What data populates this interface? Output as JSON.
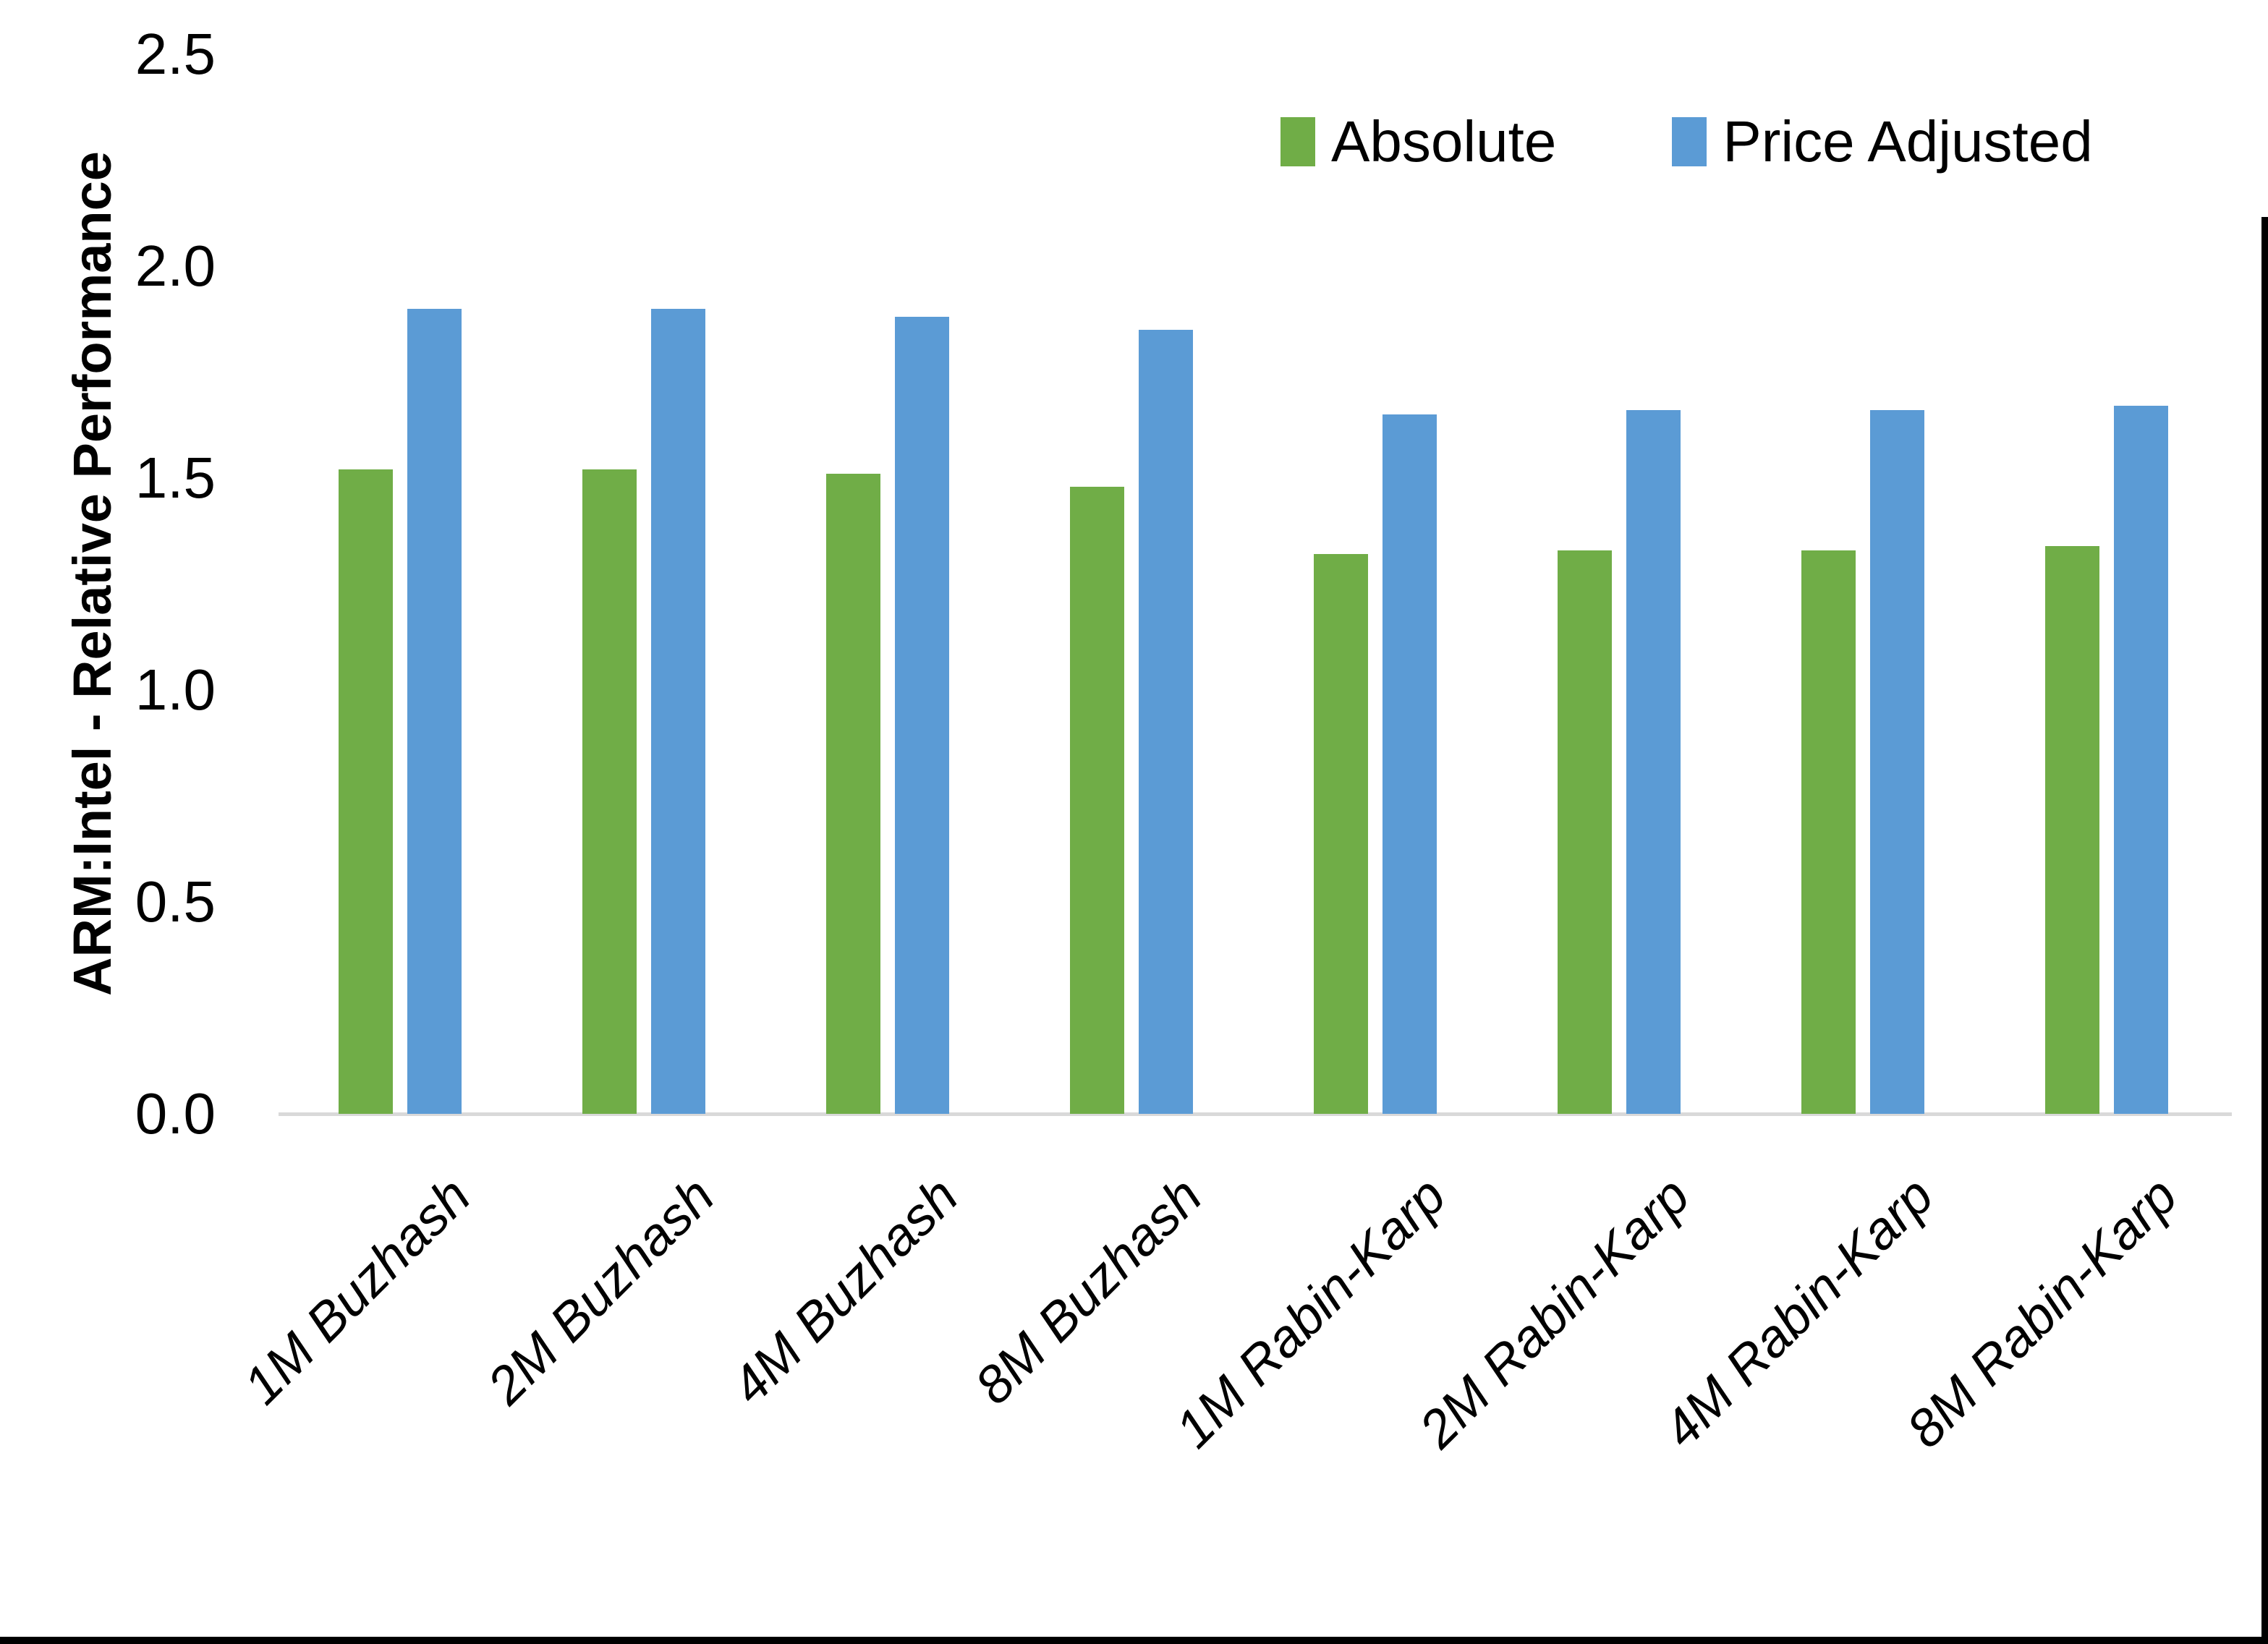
{
  "chart_data": {
    "type": "bar",
    "title": "",
    "xlabel": "",
    "ylabel": "ARM:Intel - Relative Performance",
    "categories": [
      "1M Buzhash",
      "2M Buzhash",
      "4M Buzhash",
      "8M Buzhash",
      "1M Rabin-Karp",
      "2M Rabin-Karp",
      "4M Rabin-Karp",
      "8M Rabin-Karp"
    ],
    "series": [
      {
        "name": "Absolute",
        "color": "#70AD47",
        "values": [
          1.52,
          1.52,
          1.51,
          1.48,
          1.32,
          1.33,
          1.33,
          1.34
        ]
      },
      {
        "name": "Price Adjusted",
        "color": "#5B9BD5",
        "values": [
          1.9,
          1.9,
          1.88,
          1.85,
          1.65,
          1.66,
          1.66,
          1.67
        ]
      }
    ],
    "ylim": [
      0.0,
      2.5
    ],
    "yticks": [
      "0.0",
      "0.5",
      "1.0",
      "1.5",
      "2.0",
      "2.5"
    ],
    "grid": false,
    "legend_position": "top-right"
  },
  "colors": {
    "axis_line": "#D9D9D9",
    "frame_border": "#000000",
    "text": "#000000"
  }
}
